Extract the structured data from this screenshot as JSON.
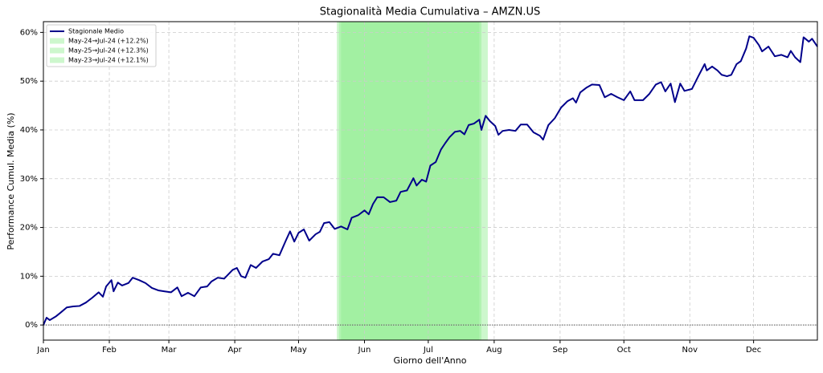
{
  "chart_data": {
    "type": "line",
    "title": "Stagionalità Media Cumulativa – AMZN.US",
    "x_label": "Giorno dell'Anno",
    "y_label": "Performance Cumul. Media (%)",
    "xlim": [
      0,
      364
    ],
    "ylim": [
      -3.1,
      62.2
    ],
    "xticks": [
      {
        "value": 0,
        "label": "Jan"
      },
      {
        "value": 31,
        "label": "Feb"
      },
      {
        "value": 59,
        "label": "Mar"
      },
      {
        "value": 90,
        "label": "Apr"
      },
      {
        "value": 120,
        "label": "May"
      },
      {
        "value": 151,
        "label": "Jun"
      },
      {
        "value": 181,
        "label": "Jul"
      },
      {
        "value": 212,
        "label": "Aug"
      },
      {
        "value": 243,
        "label": "Sep"
      },
      {
        "value": 273,
        "label": "Oct"
      },
      {
        "value": 304,
        "label": "Nov"
      },
      {
        "value": 334,
        "label": "Dec"
      }
    ],
    "yticks": [
      {
        "value": 0,
        "label": "0%"
      },
      {
        "value": 10,
        "label": "10%"
      },
      {
        "value": 20,
        "label": "20%"
      },
      {
        "value": 30,
        "label": "30%"
      },
      {
        "value": 40,
        "label": "40%"
      },
      {
        "value": 50,
        "label": "50%"
      },
      {
        "value": 60,
        "label": "60%"
      }
    ],
    "grid": true,
    "hline": 0,
    "legend": "upper left",
    "spans": [
      {
        "name": "May-24→Jul-24 (+12.2%)",
        "start": 139,
        "end": 206,
        "color": "#90ee90"
      },
      {
        "name": "May-25→Jul-24 (+12.3%)",
        "start": 140,
        "end": 205,
        "color": "#90ee90"
      },
      {
        "name": "May-23→Jul-24 (+12.1%)",
        "start": 138,
        "end": 209,
        "color": "#90ee90"
      }
    ],
    "x": [
      0,
      1.5,
      3,
      6,
      8,
      11,
      14,
      17,
      20,
      23,
      26,
      28,
      29.5,
      32,
      33,
      35,
      37,
      40,
      42,
      45,
      48,
      51,
      54,
      57,
      60,
      63,
      65,
      68,
      71,
      74,
      77,
      79,
      82,
      85,
      89,
      91,
      93,
      95,
      97.5,
      100,
      103,
      106,
      108,
      111,
      114,
      116,
      118,
      120,
      122.5,
      125,
      128,
      130,
      132,
      134.5,
      137,
      140,
      143,
      145,
      148,
      151,
      153,
      155,
      157,
      160,
      163,
      166,
      168,
      171,
      174,
      175.5,
      178,
      180,
      182,
      184.5,
      187,
      189,
      191,
      193.5,
      196,
      198,
      200,
      202.5,
      205,
      206,
      208,
      210,
      212.5,
      214,
      216,
      219,
      222,
      224.5,
      227.5,
      230.5,
      233.5,
      235,
      237.5,
      240.5,
      243.5,
      246.5,
      249,
      250.5,
      252.5,
      255.5,
      258,
      261.5,
      264,
      267,
      270,
      273,
      276,
      278,
      282,
      285,
      288,
      290.5,
      292.5,
      295,
      297,
      299.5,
      301.5,
      305,
      308,
      311,
      312,
      314.5,
      317,
      319,
      321.5,
      323.5,
      326,
      328,
      330.5,
      332,
      334,
      336.5,
      338,
      341,
      344,
      347,
      350,
      351.5,
      353.5,
      356,
      357.5,
      360,
      361.5,
      364
    ],
    "series": [
      {
        "name": "Stagionale Medio",
        "color": "#00008b",
        "values": [
          0,
          1.5,
          1.0,
          1.8,
          2.5,
          3.6,
          3.8,
          3.9,
          4.6,
          5.6,
          6.7,
          5.8,
          7.9,
          9.2,
          6.9,
          8.7,
          8.1,
          8.6,
          9.7,
          9.2,
          8.6,
          7.6,
          7.1,
          6.9,
          6.7,
          7.7,
          5.9,
          6.6,
          5.9,
          7.7,
          7.9,
          8.9,
          9.7,
          9.5,
          11.3,
          11.7,
          10.0,
          9.7,
          12.3,
          11.7,
          13.0,
          13.5,
          14.6,
          14.3,
          17.3,
          19.2,
          17.1,
          18.9,
          19.6,
          17.3,
          18.6,
          19.1,
          20.9,
          21.1,
          19.7,
          20.2,
          19.6,
          22.0,
          22.5,
          23.5,
          22.7,
          24.8,
          26.2,
          26.2,
          25.2,
          25.5,
          27.3,
          27.6,
          30.1,
          28.6,
          29.8,
          29.4,
          32.7,
          33.4,
          36.0,
          37.3,
          38.5,
          39.6,
          39.8,
          39.1,
          41.0,
          41.3,
          42.1,
          40.0,
          42.9,
          41.8,
          40.8,
          39.0,
          39.8,
          40.0,
          39.8,
          41.1,
          41.1,
          39.5,
          38.8,
          38.0,
          41.0,
          42.4,
          44.6,
          45.9,
          46.5,
          45.6,
          47.7,
          48.7,
          49.3,
          49.2,
          46.7,
          47.4,
          46.7,
          46.1,
          47.9,
          46.1,
          46.1,
          47.4,
          49.3,
          49.8,
          47.9,
          49.5,
          45.7,
          49.5,
          48.0,
          48.4,
          51.0,
          53.5,
          52.2,
          53.0,
          52.2,
          51.3,
          51.0,
          51.3,
          53.5,
          54.1,
          56.7,
          59.2,
          58.9,
          57.4,
          56.1,
          57.1,
          55.1,
          55.4,
          54.9,
          56.2,
          54.9,
          53.9,
          59.0,
          58.1,
          58.7,
          57.1
        ]
      }
    ]
  }
}
